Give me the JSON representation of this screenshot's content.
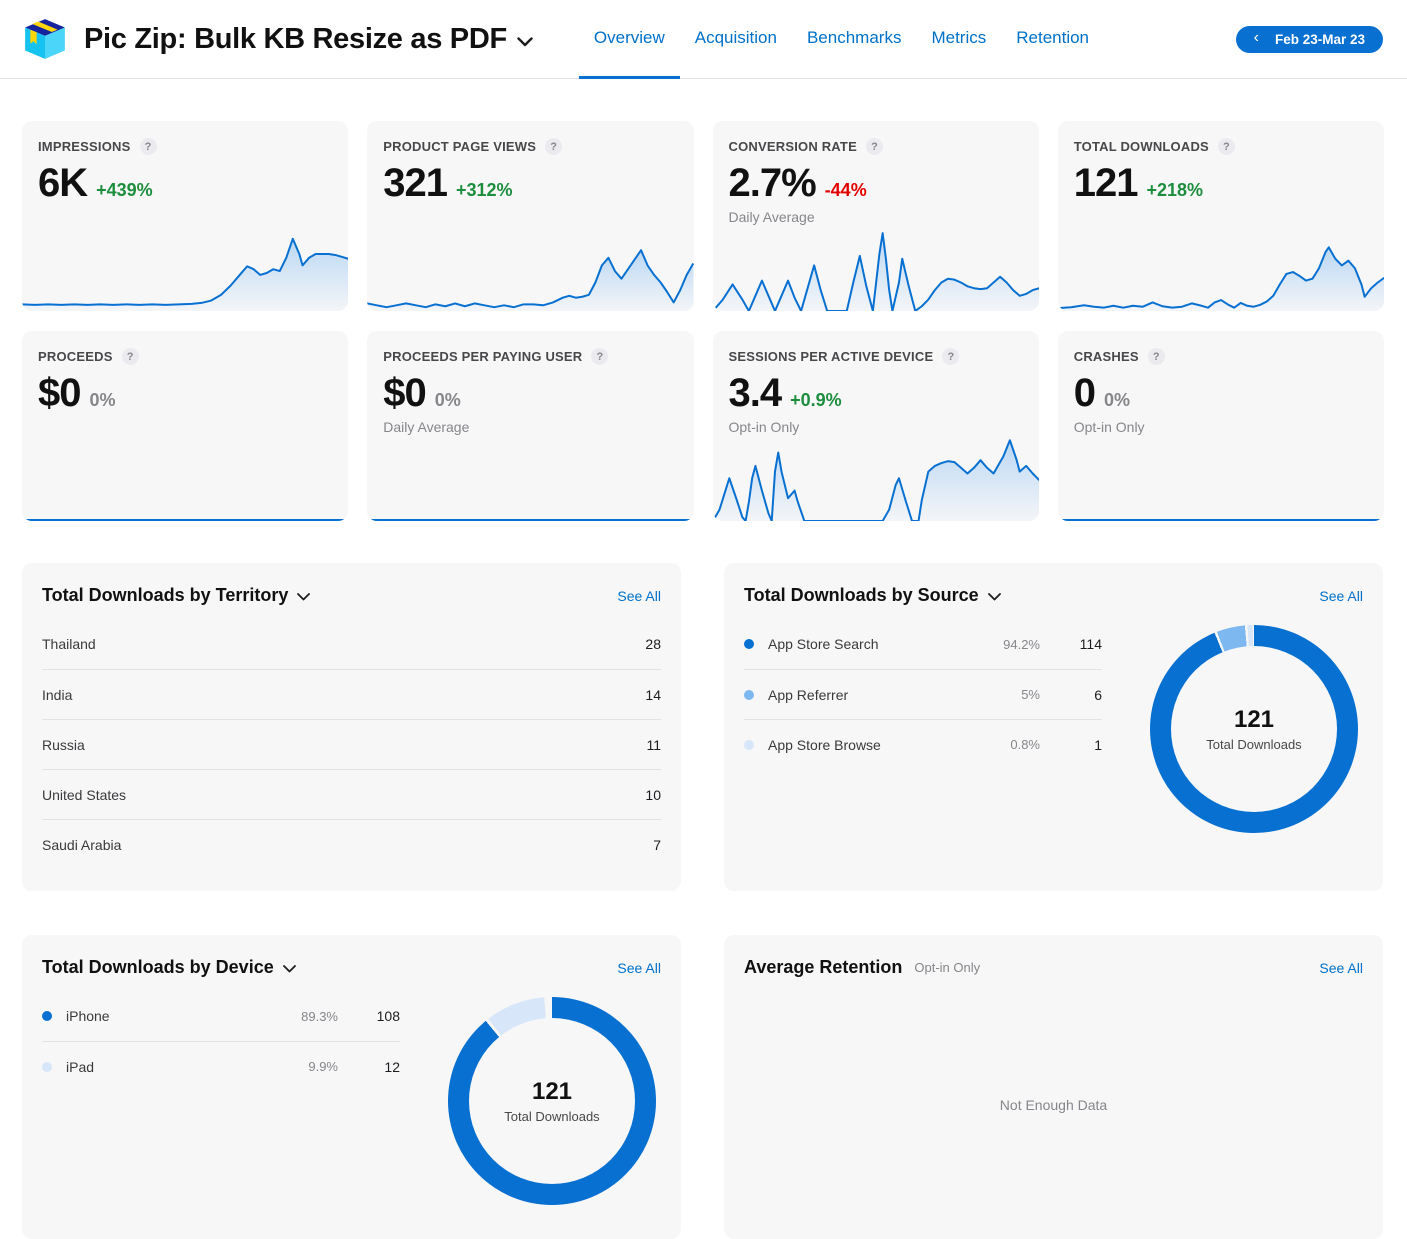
{
  "colors": {
    "accent": "#0870d1",
    "link": "#0070c9",
    "green": "#1d8e3e",
    "red": "#e30000",
    "gray_text": "#86868b",
    "dot_dark": "#0870d1",
    "dot_mid": "#7db8f0",
    "dot_pale": "#d7e6f9",
    "gap": "#f7f7f8",
    "spark_fill_top": "rgba(138,190,240,0.55)",
    "spark_fill_bottom": "rgba(138,190,240,0.03)"
  },
  "icons": {
    "help": "?",
    "back_chevron": "‹"
  },
  "header": {
    "app_title": "Pic Zip: Bulk KB Resize as PDF",
    "nav": [
      {
        "label": "Overview",
        "active": true
      },
      {
        "label": "Acquisition",
        "active": false
      },
      {
        "label": "Benchmarks",
        "active": false
      },
      {
        "label": "Metrics",
        "active": false
      },
      {
        "label": "Retention",
        "active": false
      }
    ],
    "date_range": "Feb 23-Mar 23"
  },
  "metric_cards": [
    {
      "label": "IMPRESSIONS",
      "value": "6K",
      "delta": "+439%",
      "delta_tone": "green",
      "subtitle": "",
      "spark": "impressions"
    },
    {
      "label": "PRODUCT PAGE VIEWS",
      "value": "321",
      "delta": "+312%",
      "delta_tone": "green",
      "subtitle": "",
      "spark": "product_page_views"
    },
    {
      "label": "CONVERSION RATE",
      "value": "2.7%",
      "delta": "-44%",
      "delta_tone": "red",
      "subtitle": "Daily Average",
      "spark": "conversion_rate"
    },
    {
      "label": "TOTAL DOWNLOADS",
      "value": "121",
      "delta": "+218%",
      "delta_tone": "green",
      "subtitle": "",
      "spark": "total_downloads"
    },
    {
      "label": "PROCEEDS",
      "value": "$0",
      "delta": "0%",
      "delta_tone": "gray",
      "subtitle": "",
      "spark": "flat"
    },
    {
      "label": "PROCEEDS PER PAYING USER",
      "value": "$0",
      "delta": "0%",
      "delta_tone": "gray",
      "subtitle": "Daily Average",
      "spark": "flat"
    },
    {
      "label": "SESSIONS PER ACTIVE DEVICE",
      "value": "3.4",
      "delta": "+0.9%",
      "delta_tone": "green",
      "subtitle": "Opt-in Only",
      "spark": "sessions"
    },
    {
      "label": "CRASHES",
      "value": "0",
      "delta": "0%",
      "delta_tone": "gray",
      "subtitle": "Opt-in Only",
      "spark": "flat"
    }
  ],
  "panels": {
    "territory": {
      "title": "Total Downloads by Territory",
      "see_all": "See All",
      "rows": [
        {
          "name": "Thailand",
          "value": "28"
        },
        {
          "name": "India",
          "value": "14"
        },
        {
          "name": "Russia",
          "value": "11"
        },
        {
          "name": "United States",
          "value": "10"
        },
        {
          "name": "Saudi Arabia",
          "value": "7"
        }
      ]
    },
    "source": {
      "title": "Total Downloads by Source",
      "see_all": "See All",
      "rows": [
        {
          "name": "App Store Search",
          "pct": "94.2%",
          "value": "114",
          "dot": "dot_dark"
        },
        {
          "name": "App Referrer",
          "pct": "5%",
          "value": "6",
          "dot": "dot_mid"
        },
        {
          "name": "App Store Browse",
          "pct": "0.8%",
          "value": "1",
          "dot": "dot_pale"
        }
      ],
      "donut_center_value": "121",
      "donut_center_label": "Total Downloads"
    },
    "device": {
      "title": "Total Downloads by Device",
      "see_all": "See All",
      "rows": [
        {
          "name": "iPhone",
          "pct": "89.3%",
          "value": "108",
          "dot": "dot_dark"
        },
        {
          "name": "iPad",
          "pct": "9.9%",
          "value": "12",
          "dot": "dot_pale"
        }
      ],
      "donut_center_value": "121",
      "donut_center_label": "Total Downloads"
    },
    "retention": {
      "title": "Average Retention",
      "subtitle": "Opt-in Only",
      "see_all": "See All",
      "empty_text": "Not Enough Data"
    }
  },
  "chart_data": {
    "period": "Feb 23-Mar 23",
    "sparklines": {
      "impressions": {
        "type": "area",
        "title": "Impressions",
        "total": "6K",
        "delta": "+439%",
        "points": [
          [
            0,
            93
          ],
          [
            4,
            93.5
          ],
          [
            8,
            93
          ],
          [
            12,
            93.5
          ],
          [
            16,
            93
          ],
          [
            20,
            93.5
          ],
          [
            24,
            93
          ],
          [
            28,
            93.5
          ],
          [
            32,
            93
          ],
          [
            36,
            93.5
          ],
          [
            40,
            93
          ],
          [
            44,
            93.5
          ],
          [
            48,
            93
          ],
          [
            52,
            92.5
          ],
          [
            55,
            91.5
          ],
          [
            58,
            89
          ],
          [
            61,
            83
          ],
          [
            64,
            73
          ],
          [
            67,
            61
          ],
          [
            69,
            53
          ],
          [
            71,
            56
          ],
          [
            73,
            62
          ],
          [
            75,
            60
          ],
          [
            77,
            56
          ],
          [
            79,
            58
          ],
          [
            81,
            44
          ],
          [
            83,
            24
          ],
          [
            85,
            40
          ],
          [
            86,
            52
          ],
          [
            88,
            44
          ],
          [
            90,
            40
          ],
          [
            92,
            40
          ],
          [
            94,
            40
          ],
          [
            96,
            41
          ],
          [
            98,
            43
          ],
          [
            100,
            45
          ]
        ]
      },
      "product_page_views": {
        "type": "area",
        "title": "Product Page Views",
        "total": "321",
        "delta": "+312%",
        "points": [
          [
            0,
            92
          ],
          [
            3,
            94
          ],
          [
            6,
            96
          ],
          [
            9,
            94
          ],
          [
            12,
            92
          ],
          [
            15,
            94
          ],
          [
            18,
            96
          ],
          [
            21,
            93
          ],
          [
            24,
            95
          ],
          [
            27,
            92
          ],
          [
            30,
            95
          ],
          [
            33,
            92
          ],
          [
            36,
            94
          ],
          [
            39,
            96
          ],
          [
            42,
            94
          ],
          [
            45,
            96
          ],
          [
            48,
            93
          ],
          [
            51,
            93
          ],
          [
            54,
            94
          ],
          [
            57,
            91
          ],
          [
            60,
            86
          ],
          [
            62,
            84
          ],
          [
            64,
            86
          ],
          [
            66,
            85
          ],
          [
            68,
            83
          ],
          [
            70,
            70
          ],
          [
            72,
            52
          ],
          [
            74,
            44
          ],
          [
            76,
            58
          ],
          [
            78,
            66
          ],
          [
            80,
            56
          ],
          [
            82,
            46
          ],
          [
            84,
            36
          ],
          [
            86,
            52
          ],
          [
            88,
            62
          ],
          [
            90,
            70
          ],
          [
            92,
            80
          ],
          [
            94,
            91
          ],
          [
            96,
            78
          ],
          [
            98,
            62
          ],
          [
            100,
            50
          ]
        ]
      },
      "conversion_rate": {
        "type": "area",
        "title": "Conversion Rate",
        "total": "2.7%",
        "delta": "-44%",
        "points": [
          [
            0,
            100
          ],
          [
            3,
            88
          ],
          [
            6,
            72
          ],
          [
            9,
            88
          ],
          [
            11,
            100
          ],
          [
            13,
            84
          ],
          [
            15,
            68
          ],
          [
            17,
            84
          ],
          [
            19,
            100
          ],
          [
            21,
            84
          ],
          [
            23,
            68
          ],
          [
            25,
            86
          ],
          [
            27,
            100
          ],
          [
            29,
            76
          ],
          [
            31,
            52
          ],
          [
            33,
            78
          ],
          [
            35,
            100
          ],
          [
            38,
            100
          ],
          [
            41,
            100
          ],
          [
            43,
            70
          ],
          [
            45,
            42
          ],
          [
            47,
            74
          ],
          [
            49,
            100
          ],
          [
            51,
            40
          ],
          [
            52,
            18
          ],
          [
            53,
            45
          ],
          [
            54,
            78
          ],
          [
            55,
            100
          ],
          [
            57,
            70
          ],
          [
            58,
            45
          ],
          [
            60,
            74
          ],
          [
            62,
            100
          ],
          [
            64,
            95
          ],
          [
            66,
            88
          ],
          [
            68,
            78
          ],
          [
            70,
            70
          ],
          [
            72,
            66
          ],
          [
            74,
            67
          ],
          [
            76,
            70
          ],
          [
            78,
            74
          ],
          [
            80,
            76
          ],
          [
            82,
            77
          ],
          [
            84,
            76
          ],
          [
            86,
            70
          ],
          [
            88,
            64
          ],
          [
            90,
            70
          ],
          [
            92,
            78
          ],
          [
            94,
            84
          ],
          [
            96,
            82
          ],
          [
            98,
            78
          ],
          [
            100,
            76
          ]
        ]
      },
      "total_downloads": {
        "type": "area",
        "title": "Total Downloads",
        "total": "121",
        "delta": "+218%",
        "points": [
          [
            0,
            97
          ],
          [
            4,
            96
          ],
          [
            8,
            94
          ],
          [
            11,
            95.5
          ],
          [
            14,
            96.5
          ],
          [
            17,
            94.5
          ],
          [
            20,
            96.5
          ],
          [
            23,
            94.5
          ],
          [
            26,
            95.5
          ],
          [
            29,
            91
          ],
          [
            32,
            95
          ],
          [
            35,
            96.5
          ],
          [
            38,
            95.5
          ],
          [
            41,
            92
          ],
          [
            44,
            94.5
          ],
          [
            46,
            96.5
          ],
          [
            48,
            91
          ],
          [
            50,
            88.5
          ],
          [
            52,
            93
          ],
          [
            54,
            96.5
          ],
          [
            56,
            91.5
          ],
          [
            58,
            94.5
          ],
          [
            60,
            95.5
          ],
          [
            62,
            93.5
          ],
          [
            64,
            90
          ],
          [
            66,
            84
          ],
          [
            68,
            72
          ],
          [
            70,
            61
          ],
          [
            72,
            59
          ],
          [
            74,
            63
          ],
          [
            76,
            68
          ],
          [
            78,
            66
          ],
          [
            80,
            55
          ],
          [
            82,
            38
          ],
          [
            83,
            33
          ],
          [
            85,
            45
          ],
          [
            87,
            52
          ],
          [
            89,
            47
          ],
          [
            91,
            55
          ],
          [
            93,
            72
          ],
          [
            94,
            85
          ],
          [
            96,
            76
          ],
          [
            98,
            70
          ],
          [
            100,
            65
          ]
        ]
      },
      "sessions": {
        "type": "area",
        "title": "Sessions per Active Device",
        "total": "3.4",
        "delta": "+0.9%",
        "points": [
          [
            0,
            100
          ],
          [
            2,
            88
          ],
          [
            4,
            66
          ],
          [
            5,
            55
          ],
          [
            7,
            75
          ],
          [
            9,
            96
          ],
          [
            10,
            100
          ],
          [
            11,
            80
          ],
          [
            12,
            55
          ],
          [
            13,
            42
          ],
          [
            15,
            68
          ],
          [
            17,
            92
          ],
          [
            18,
            100
          ],
          [
            19,
            48
          ],
          [
            20,
            28
          ],
          [
            21,
            48
          ],
          [
            23,
            76
          ],
          [
            25,
            68
          ],
          [
            26,
            80
          ],
          [
            28,
            100
          ],
          [
            32,
            100
          ],
          [
            36,
            100
          ],
          [
            40,
            100
          ],
          [
            44,
            100
          ],
          [
            48,
            100
          ],
          [
            52,
            100
          ],
          [
            54,
            88
          ],
          [
            56,
            62
          ],
          [
            57,
            55
          ],
          [
            59,
            78
          ],
          [
            61,
            100
          ],
          [
            63,
            100
          ],
          [
            64,
            78
          ],
          [
            66,
            48
          ],
          [
            68,
            42
          ],
          [
            70,
            39
          ],
          [
            72,
            37
          ],
          [
            74,
            38
          ],
          [
            76,
            44
          ],
          [
            78,
            50
          ],
          [
            80,
            44
          ],
          [
            82,
            36
          ],
          [
            84,
            44
          ],
          [
            86,
            50
          ],
          [
            87,
            44
          ],
          [
            89,
            32
          ],
          [
            91,
            15
          ],
          [
            93,
            35
          ],
          [
            94,
            48
          ],
          [
            96,
            42
          ],
          [
            98,
            50
          ],
          [
            100,
            57
          ]
        ]
      },
      "flat": {
        "type": "line",
        "title": "Flat zero trend",
        "points": [
          [
            0,
            99
          ],
          [
            100,
            99
          ]
        ]
      }
    },
    "donuts": {
      "source": {
        "type": "pie",
        "categories": [
          "App Store Search",
          "App Referrer",
          "App Store Browse"
        ],
        "values": [
          114,
          6,
          1
        ],
        "percents": [
          94.2,
          5,
          0.8
        ],
        "center": "121 Total Downloads",
        "segments": [
          {
            "color_key": "dot_dark",
            "pct": 93.8
          },
          {
            "color_key": "gap",
            "pct": 0.4
          },
          {
            "color_key": "dot_mid",
            "pct": 4.4
          },
          {
            "color_key": "gap",
            "pct": 0.4
          },
          {
            "color_key": "dot_pale",
            "pct": 0.8
          },
          {
            "color_key": "gap",
            "pct": 0.2
          }
        ]
      },
      "device": {
        "type": "pie",
        "categories": [
          "iPhone",
          "iPad"
        ],
        "values": [
          108,
          12
        ],
        "percents": [
          89.3,
          9.9
        ],
        "center": "121 Total Downloads",
        "segments": [
          {
            "color_key": "dot_dark",
            "pct": 89.0
          },
          {
            "color_key": "gap",
            "pct": 0.5
          },
          {
            "color_key": "dot_pale",
            "pct": 9.3
          },
          {
            "color_key": "gap",
            "pct": 1.2
          }
        ]
      }
    }
  }
}
